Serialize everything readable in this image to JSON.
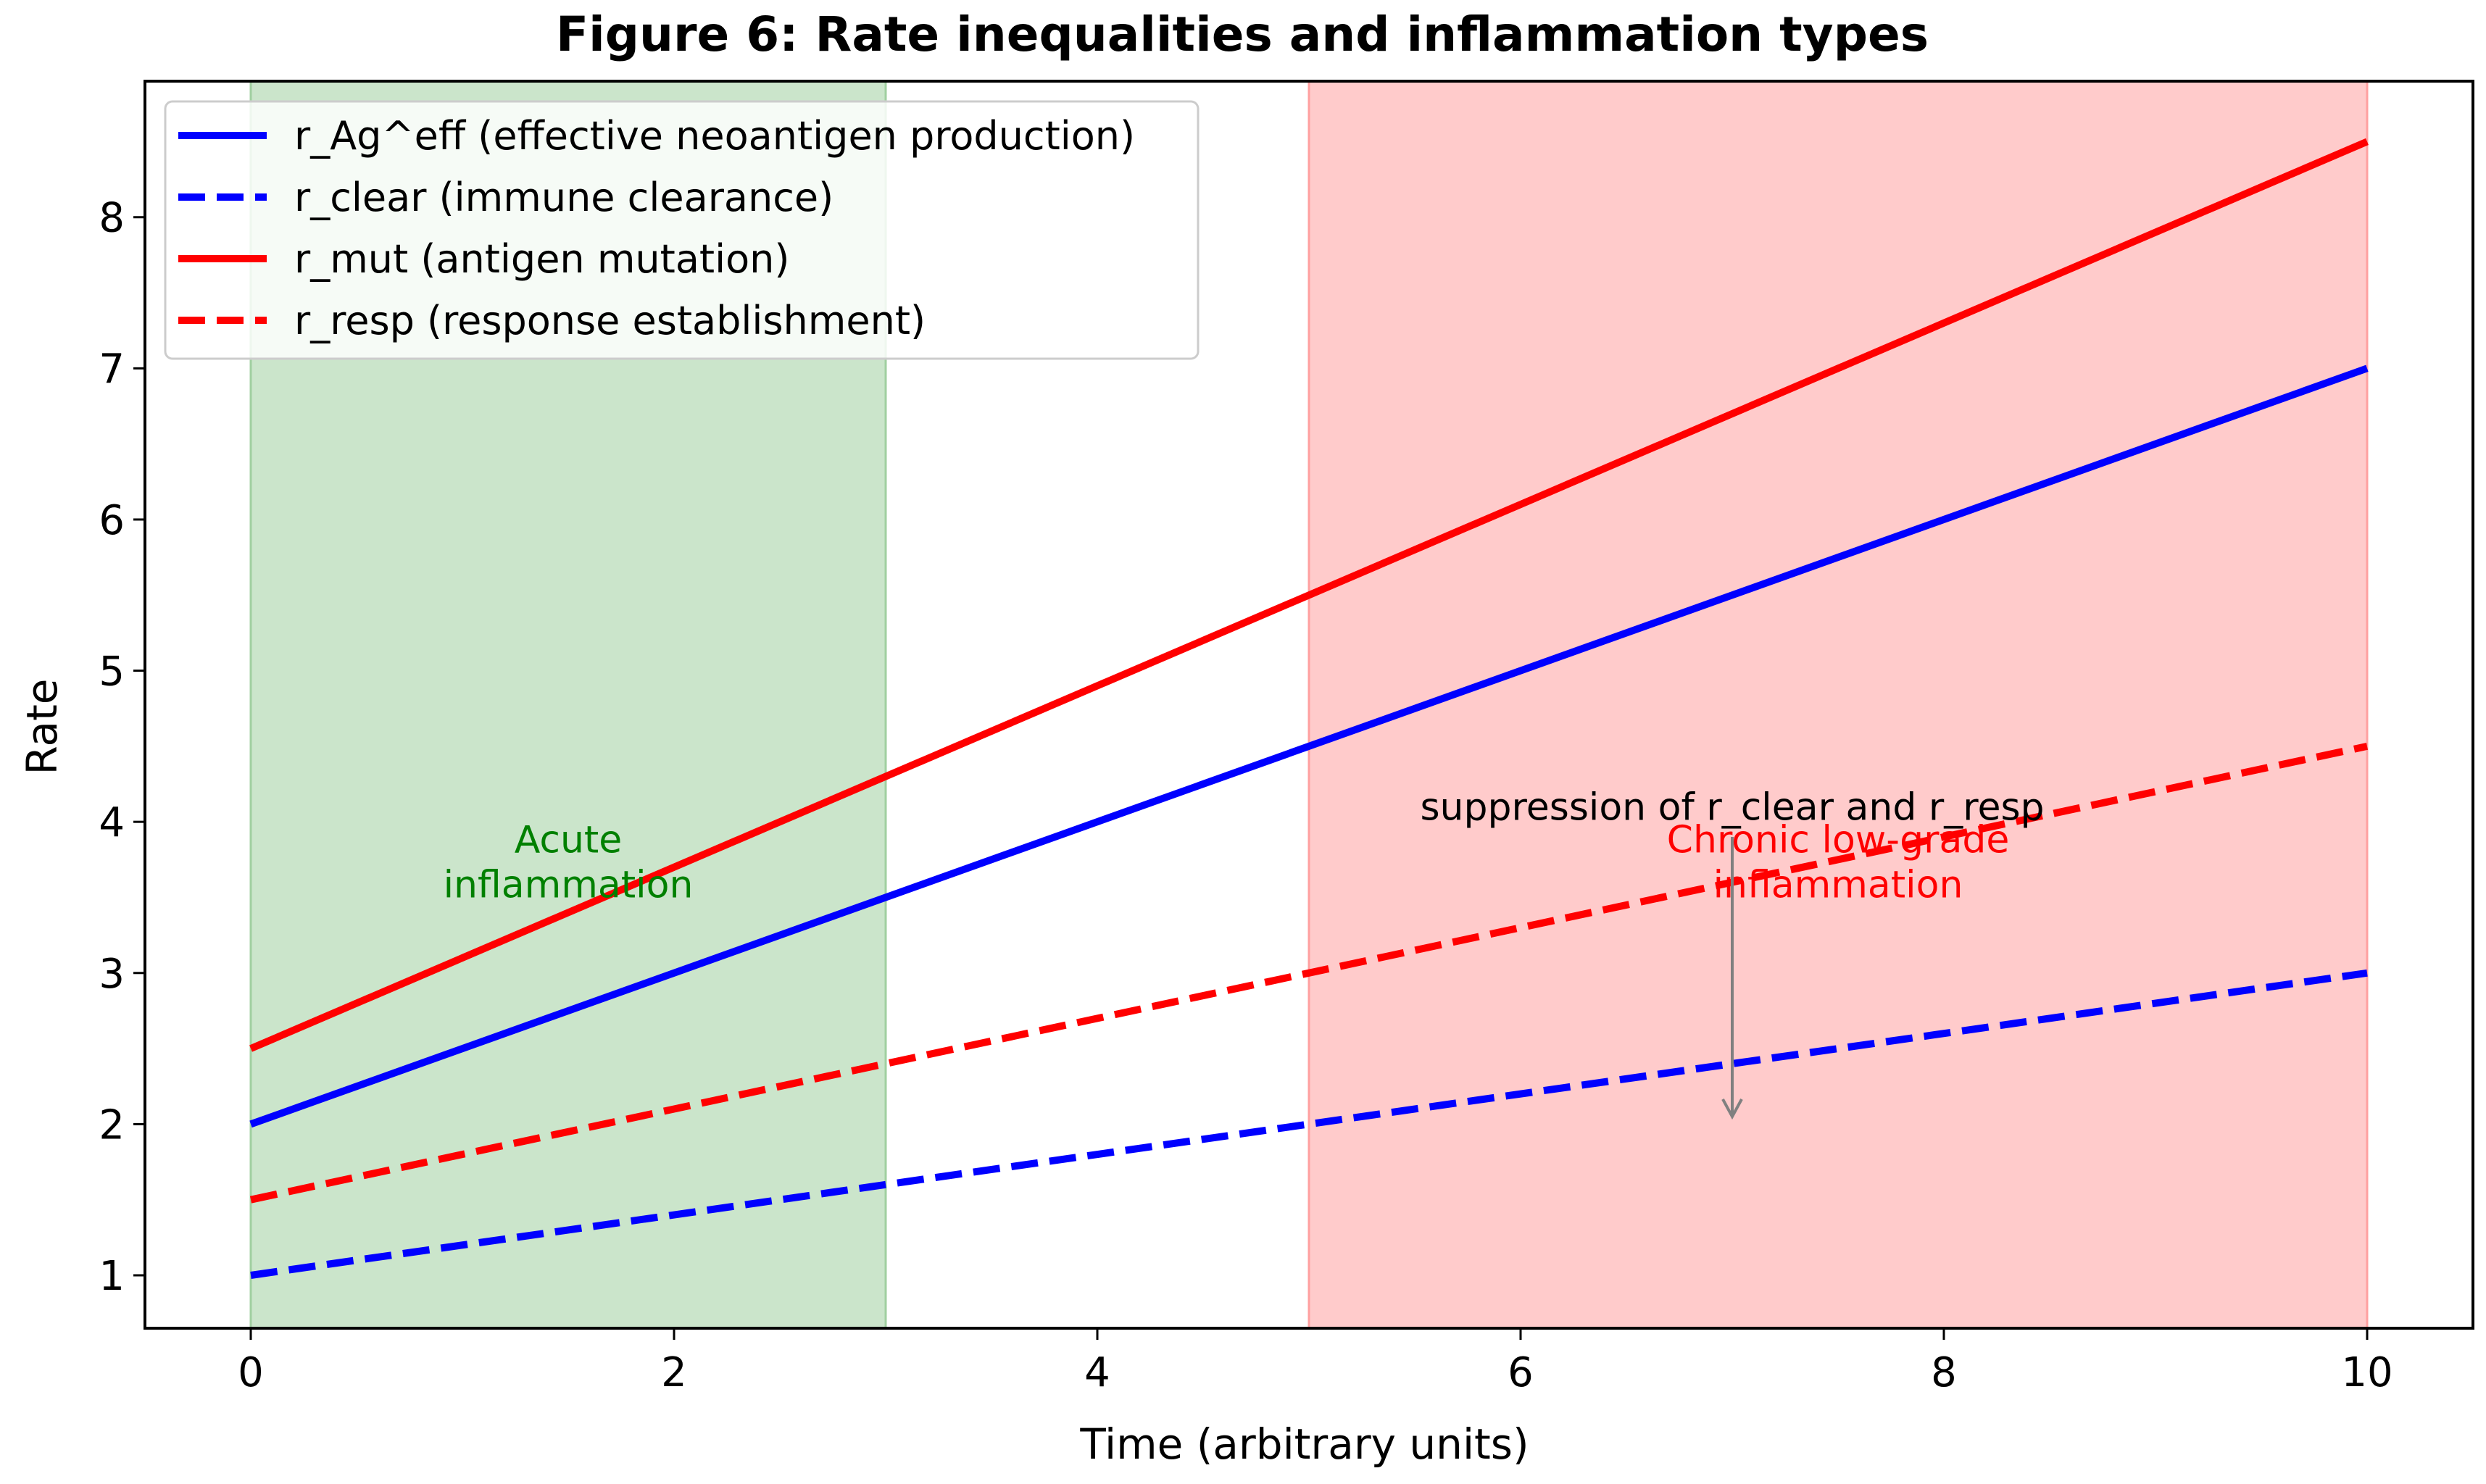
{
  "chart_data": {
    "type": "line",
    "title": "Figure 6: Rate inequalities and inflammation types",
    "xlabel": "Time (arbitrary units)",
    "ylabel": "Rate",
    "xlim": [
      -0.5,
      10.5
    ],
    "ylim": [
      0.65,
      8.9
    ],
    "xticks": [
      0,
      2,
      4,
      6,
      8,
      10
    ],
    "yticks": [
      1,
      2,
      3,
      4,
      5,
      6,
      7,
      8
    ],
    "grid": false,
    "legend_position": "upper-left",
    "series": [
      {
        "name": "r_Ag^eff (effective neoantigen production)",
        "color": "#0000ff",
        "style": "solid",
        "x": [
          0,
          10
        ],
        "y": [
          2.0,
          7.0
        ]
      },
      {
        "name": "r_clear (immune clearance)",
        "color": "#0000ff",
        "style": "dashed",
        "x": [
          0,
          10
        ],
        "y": [
          1.0,
          3.0
        ]
      },
      {
        "name": "r_mut (antigen mutation)",
        "color": "#ff0000",
        "style": "solid",
        "x": [
          0,
          10
        ],
        "y": [
          2.5,
          8.5
        ]
      },
      {
        "name": "r_resp (response establishment)",
        "color": "#ff0000",
        "style": "dashed",
        "x": [
          0,
          10
        ],
        "y": [
          1.5,
          4.5
        ]
      }
    ],
    "regions": [
      {
        "label": "Acute\ninflammation",
        "x": [
          0,
          3
        ],
        "fill": "#a0cfa0",
        "text_color": "#008000",
        "label_x": 1.5,
        "label_y": 3.75
      },
      {
        "label": "Chronic low-grade\ninflammation",
        "x": [
          5,
          10
        ],
        "fill": "#ffa0a0",
        "text_color": "#ff0000",
        "label_x": 7.5,
        "label_y": 3.75
      }
    ],
    "annotations": [
      {
        "text": "suppression of r_clear and r_resp",
        "text_x": 7.0,
        "text_y": 4.05,
        "arrow_from": [
          7.0,
          3.9
        ],
        "arrow_to": [
          7.0,
          2.05
        ]
      }
    ]
  }
}
